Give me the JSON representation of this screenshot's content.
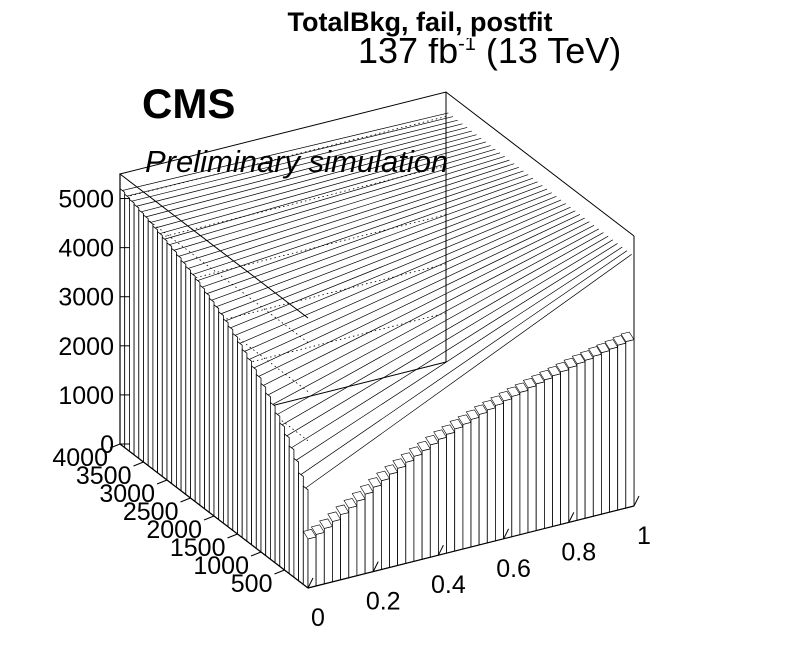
{
  "chart_data": {
    "type": "lego3d",
    "title": "TotalBkg, fail, postfit",
    "luminosity_text": "137 fb",
    "luminosity_exponent": "-1",
    "energy_text": " (13 TeV)",
    "cms_label": "CMS",
    "cms_sublabel": "Preliminary simulation",
    "x_axis": {
      "range": [
        0,
        1
      ],
      "ticks": [
        "0",
        "0.2",
        "0.4",
        "0.6",
        "0.8",
        "1"
      ],
      "label": ""
    },
    "y_axis": {
      "range": [
        0,
        4000
      ],
      "ticks": [
        "500",
        "1000",
        "1500",
        "2000",
        "2500",
        "3000",
        "3500",
        "4000"
      ],
      "label": ""
    },
    "z_axis": {
      "range": [
        0,
        5500
      ],
      "ticks": [
        "0",
        "1000",
        "2000",
        "3000",
        "4000",
        "5000"
      ],
      "label": ""
    },
    "x_bins": 40,
    "front_row_heights": [
      1000,
      1050,
      1130,
      1230,
      1330,
      1420,
      1520,
      1620,
      1720,
      1810,
      1900,
      1980,
      2060,
      2140,
      2210,
      2290,
      2360,
      2420,
      2490,
      2540,
      2600,
      2660,
      2710,
      2760,
      2810,
      2860,
      2900,
      2950,
      2990,
      3030,
      3070,
      3110,
      3150,
      3190,
      3220,
      3260,
      3290,
      3320,
      3360,
      3390
    ],
    "left_column_heights": [
      2000,
      2200,
      2420,
      2600,
      2770,
      2920,
      3060,
      3190,
      3310,
      3430,
      3540,
      3640,
      3740,
      3830,
      3920,
      4010,
      4090,
      4160,
      4230,
      4300,
      4360,
      4420,
      4480,
      4540,
      4590,
      4640,
      4690,
      4740,
      4790,
      4830,
      4870,
      4910,
      4950,
      4990,
      5030,
      5060,
      5100,
      5130,
      5160,
      5200
    ],
    "grid": true
  }
}
